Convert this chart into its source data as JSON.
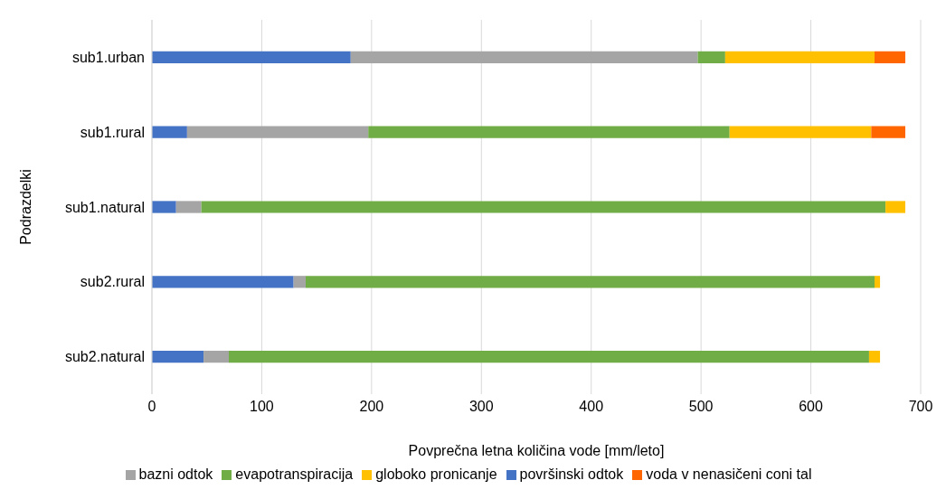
{
  "chart_data": {
    "type": "bar",
    "orientation": "horizontal",
    "stacked": true,
    "xlabel": "Povprečna letna količina vode [mm/leto]",
    "ylabel": "Podrazdelki",
    "categories": [
      "sub1.urban",
      "sub1.rural",
      "sub1.natural",
      "sub2.rural",
      "sub2.natural"
    ],
    "series": [
      {
        "name": "površinski odtok",
        "color": "#4472c4",
        "values": [
          181,
          32,
          22,
          129,
          47
        ]
      },
      {
        "name": "bazni odtok",
        "color": "#a5a5a5",
        "values": [
          316,
          165,
          23,
          11,
          23
        ]
      },
      {
        "name": "evapotranspiracija",
        "color": "#70ad47",
        "values": [
          25,
          329,
          623,
          518,
          583
        ]
      },
      {
        "name": "globoko pronicanje",
        "color": "#ffc000",
        "values": [
          136,
          129,
          18,
          5,
          10
        ]
      },
      {
        "name": "voda v nenasičeni coni tal",
        "color": "#ff6600",
        "values": [
          28,
          31,
          0,
          0,
          0
        ]
      }
    ],
    "xlim": [
      0,
      700
    ],
    "xticks": [
      0,
      100,
      200,
      300,
      400,
      500,
      600,
      700
    ],
    "grid": "x",
    "legend": "bottom"
  }
}
